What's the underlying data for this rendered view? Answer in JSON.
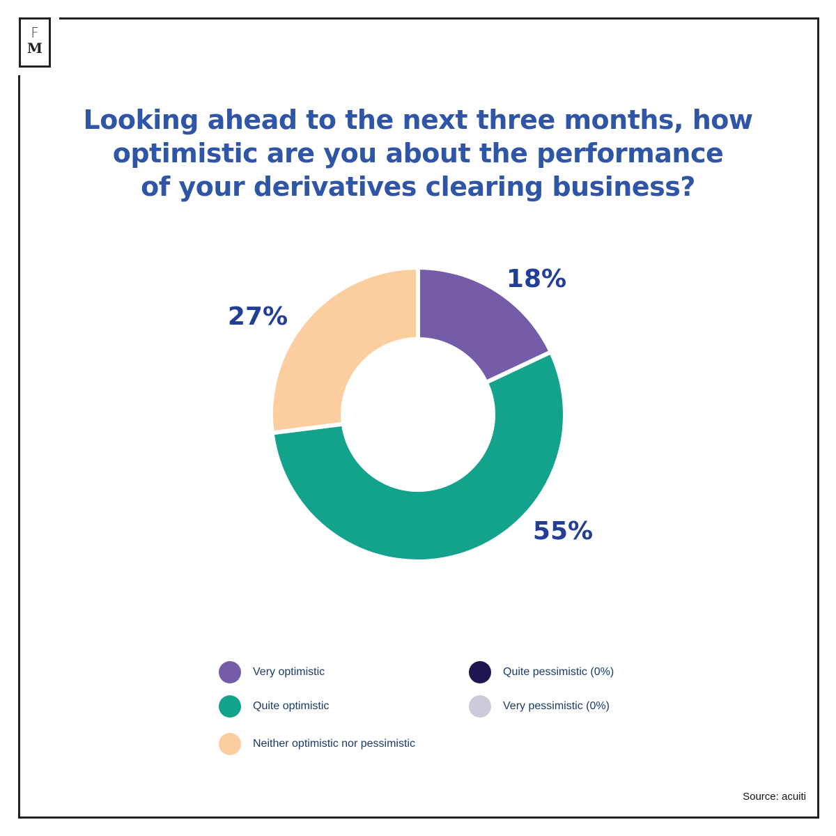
{
  "logo": {
    "top": "F",
    "bottom": "M"
  },
  "title_lines": [
    "Looking ahead to the next three months, how",
    "optimistic are you about the performance",
    "of your derivatives clearing business?"
  ],
  "chart_data": {
    "type": "pie",
    "donut": true,
    "title": "Looking ahead to the next three months, how optimistic are you about the performance of your derivatives clearing business?",
    "start_angle": "top",
    "direction": "clockwise",
    "slices": [
      {
        "label": "Very optimistic",
        "value": 18,
        "display": "18%",
        "color": "#745ca8"
      },
      {
        "label": "Quite optimistic",
        "value": 55,
        "display": "55%",
        "color": "#13a28c"
      },
      {
        "label": "Neither optimistic nor pessimistic",
        "value": 27,
        "display": "27%",
        "color": "#fbcd9f"
      },
      {
        "label": "Quite pessimistic (0%)",
        "value": 0,
        "display": "",
        "color": "#1e1650"
      },
      {
        "label": "Very pessimistic (0%)",
        "value": 0,
        "display": "",
        "color": "#ccc9d8"
      }
    ],
    "legend_position": "bottom"
  },
  "source": "Source: acuiti"
}
